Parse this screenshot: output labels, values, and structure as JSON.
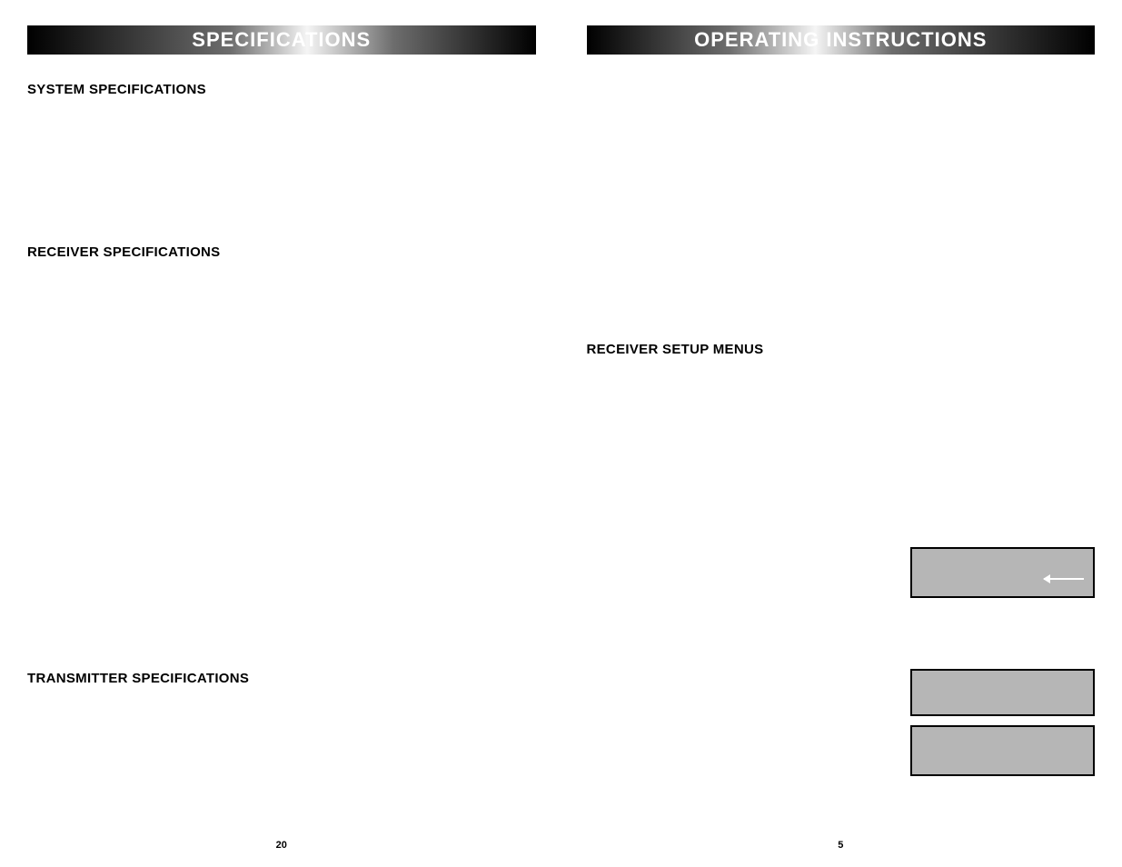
{
  "left": {
    "banner": "SPECIFICATIONS",
    "sections": {
      "system": "SYSTEM SPECIFICATIONS",
      "receiver": "RECEIVER SPECIFICATIONS",
      "transmitter": "TRANSMITTER SPECIFICATIONS"
    },
    "page_number": "20"
  },
  "right": {
    "banner": "OPERATING INSTRUCTIONS",
    "sections": {
      "receiver_setup": "RECEIVER SETUP MENUS"
    },
    "page_number": "5"
  },
  "styles": {
    "banner_text_color": "#ffffff",
    "banner_gradient_stops": [
      "#000000",
      "#6d6d6d",
      "#f5f5f5",
      "#6d6d6d",
      "#000000"
    ],
    "section_title_color": "#000000",
    "section_title_fontsize": 15,
    "display_box_bg": "#b6b6b6",
    "display_box_border": "#000000",
    "arrow_color": "#ffffff",
    "page_bg": "#ffffff"
  }
}
